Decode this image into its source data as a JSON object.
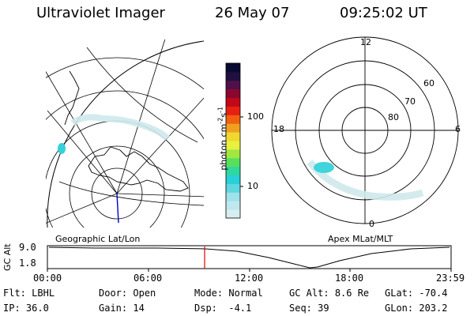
{
  "header": {
    "instrument": "Ultraviolet Imager",
    "date": "26 May 07",
    "time": "09:25:02 UT"
  },
  "colorbar": {
    "label": "photon cm",
    "label_exp": "-2",
    "label_s": "s",
    "label_exp2": "-1",
    "ticks": [
      "100",
      "10"
    ],
    "colors": [
      "#d7eef0",
      "#bfe8ee",
      "#9fe2ea",
      "#5fd6e0",
      "#28d0d8",
      "#2ed8a0",
      "#58e05c",
      "#a0e840",
      "#e8f040",
      "#f0d830",
      "#f0a020",
      "#f06010",
      "#e82010",
      "#c00818",
      "#8a0830",
      "#50104a",
      "#201040",
      "#0a0a30"
    ]
  },
  "left_map": {
    "caption": "Geographic Lat/Lon"
  },
  "right_map": {
    "caption": "Apex MLat/MLT",
    "hour_labels": [
      "12",
      "18",
      "6",
      "0"
    ],
    "lat_labels": [
      "60",
      "70",
      "80"
    ]
  },
  "altitude_plot": {
    "ylabel": "GC Alt",
    "yticks": [
      "9.0",
      "1.8"
    ],
    "xticks": [
      "00:00",
      "06:00",
      "12:00",
      "18:00",
      "23:59"
    ],
    "current_marker_color": "#e00000"
  },
  "info": {
    "row1": [
      {
        "key": "Flt:",
        "value": "LBHL"
      },
      {
        "key": "Door:",
        "value": "Open"
      },
      {
        "key": "Mode:",
        "value": "Normal"
      },
      {
        "key": "GC Alt:",
        "value": "8.6 Re"
      },
      {
        "key": "GLat:",
        "value": "-70.4"
      }
    ],
    "row2": [
      {
        "key": "IP:",
        "value": "36.0"
      },
      {
        "key": "Gain:",
        "value": "14"
      },
      {
        "key": "Dsp:",
        "value": "  -4.1"
      },
      {
        "key": "Seq:",
        "value": "39"
      },
      {
        "key": "GLon:",
        "value": "203.2"
      }
    ]
  }
}
